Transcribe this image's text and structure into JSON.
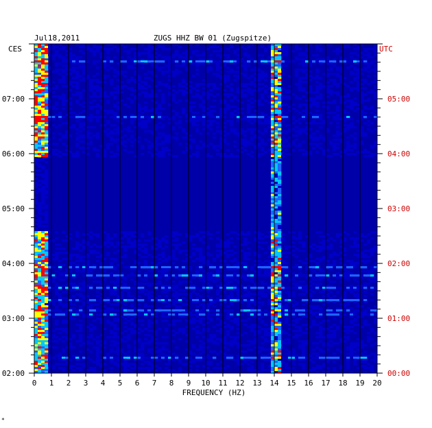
{
  "chart_data": {
    "type": "heatmap",
    "date_label": "Jul18,2011",
    "title": "ZUGS HHZ BW 01 (Zugspitze)",
    "left_axis_unit": "CES",
    "right_axis_unit": "UTC",
    "xlabel": "FREQUENCY (HZ)",
    "xlim": [
      0,
      20
    ],
    "x_ticks": [
      0,
      1,
      2,
      3,
      4,
      5,
      6,
      7,
      8,
      9,
      10,
      11,
      12,
      13,
      14,
      15,
      16,
      17,
      18,
      19,
      20
    ],
    "time_range_hours": [
      2.0,
      8.0
    ],
    "left_ticks": [
      {
        "hour": 7,
        "label": "07:00"
      },
      {
        "hour": 6,
        "label": "06:00"
      },
      {
        "hour": 5,
        "label": "05:00"
      },
      {
        "hour": 4,
        "label": "04:00"
      },
      {
        "hour": 3,
        "label": "03:00"
      },
      {
        "hour": 2,
        "label": "02:00"
      }
    ],
    "right_ticks": [
      {
        "hour": 7,
        "label": "05:00"
      },
      {
        "hour": 6,
        "label": "04:00"
      },
      {
        "hour": 5,
        "label": "03:00"
      },
      {
        "hour": 4,
        "label": "02:00"
      },
      {
        "hour": 3,
        "label": "01:00"
      },
      {
        "hour": 2,
        "label": "00:00"
      }
    ],
    "quiet_period_hours": [
      4.6,
      5.95
    ],
    "persistent_line_hz": [
      13.8,
      14.4
    ],
    "low_freq_band_hz": [
      0,
      0.8
    ],
    "colors": {
      "background": "#0000a8",
      "low": "#0000c8",
      "mid": "#1e64ff",
      "high": "#00c8ff",
      "peak": "#ffff00",
      "max": "#ff0000",
      "utc_label": "#cc0000"
    }
  },
  "footer_mark": "*"
}
